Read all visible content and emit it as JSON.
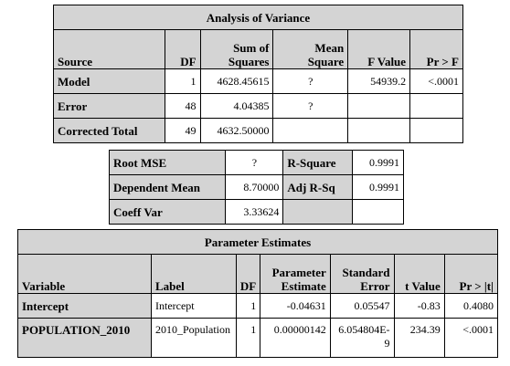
{
  "anova": {
    "title": "Analysis of Variance",
    "headers": {
      "source": "Source",
      "df": "DF",
      "ss1": "Sum of",
      "ss2": "Squares",
      "ms1": "Mean",
      "ms2": "Square",
      "f": "F Value",
      "p": "Pr > F"
    },
    "rows": [
      {
        "source": "Model",
        "df": "1",
        "ss": "4628.45615",
        "ms": "?",
        "f": "54939.2",
        "p": "<.0001"
      },
      {
        "source": "Error",
        "df": "48",
        "ss": "4.04385",
        "ms": "?",
        "f": "",
        "p": ""
      },
      {
        "source": "Corrected Total",
        "df": "49",
        "ss": "4632.50000",
        "ms": "",
        "f": "",
        "p": ""
      }
    ]
  },
  "fit": {
    "rows": [
      {
        "label1": "Root MSE",
        "value1": "?",
        "label2": "R-Square",
        "value2": "0.9991"
      },
      {
        "label1": "Dependent Mean",
        "value1": "8.70000",
        "label2": "Adj R-Sq",
        "value2": "0.9991"
      },
      {
        "label1": "Coeff Var",
        "value1": "3.33624",
        "label2": "",
        "value2": ""
      }
    ]
  },
  "params": {
    "title": "Parameter Estimates",
    "headers": {
      "variable": "Variable",
      "label": "Label",
      "df": "DF",
      "est1": "Parameter",
      "est2": "Estimate",
      "se1": "Standard",
      "se2": "Error",
      "t": "t Value",
      "p": "Pr > |t|"
    },
    "rows": [
      {
        "variable": "Intercept",
        "label": "Intercept",
        "df": "1",
        "estimate": "-0.04631",
        "se1": "0.05547",
        "se2": "",
        "t": "-0.83",
        "p": "0.4080"
      },
      {
        "variable": "POPULATION_2010",
        "label": "2010_Population",
        "df": "1",
        "estimate": "0.00000142",
        "se1": "6.054804E-",
        "se2": "9",
        "t": "234.39",
        "p": "<.0001"
      }
    ]
  }
}
